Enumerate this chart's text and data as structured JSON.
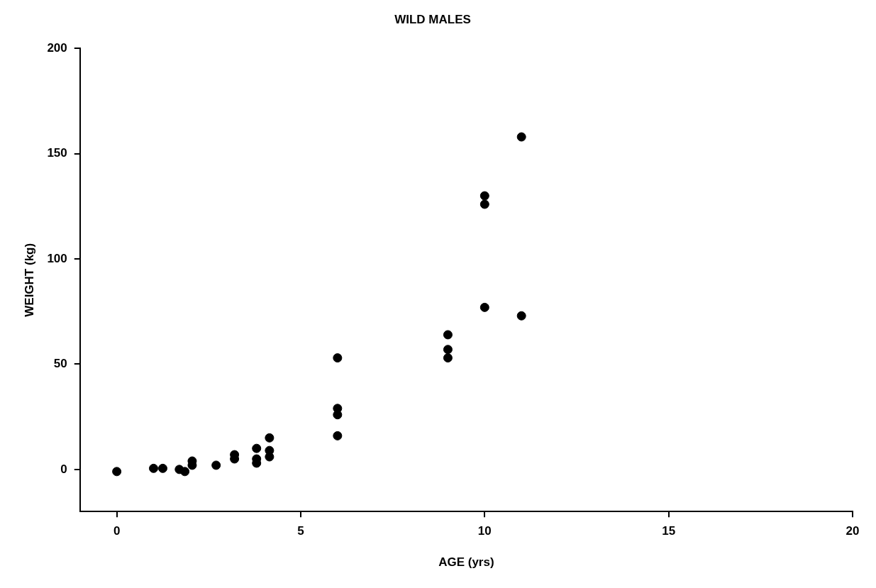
{
  "chart_data": {
    "type": "scatter",
    "title": "WILD MALES",
    "xlabel": "AGE (yrs)",
    "ylabel": "WEIGHT (kg)",
    "series": [
      {
        "color": "#000000",
        "x": [
          0,
          1,
          1.25,
          1.7,
          1.85,
          2.05,
          2.05,
          2.7,
          3.2,
          3.2,
          3.8,
          3.8,
          3.8,
          4.15,
          4.15,
          4.15,
          6,
          6,
          6,
          6,
          9,
          9,
          9,
          10,
          10,
          10,
          11,
          11
        ],
        "values": [
          -1,
          0.5,
          0.5,
          0,
          -1,
          2,
          4,
          2,
          5,
          7,
          10,
          5,
          3,
          15,
          9,
          6,
          53,
          29,
          26,
          16,
          64,
          57,
          53,
          77,
          130,
          126,
          158,
          73
        ]
      }
    ],
    "xlim": [
      -1,
      20
    ],
    "xticks": [
      0,
      5,
      10,
      15,
      20
    ],
    "ylim": [
      -20,
      200
    ],
    "yticks": [
      0,
      50,
      100,
      150,
      200
    ],
    "grid": false,
    "legend": false,
    "marker": "circle"
  }
}
